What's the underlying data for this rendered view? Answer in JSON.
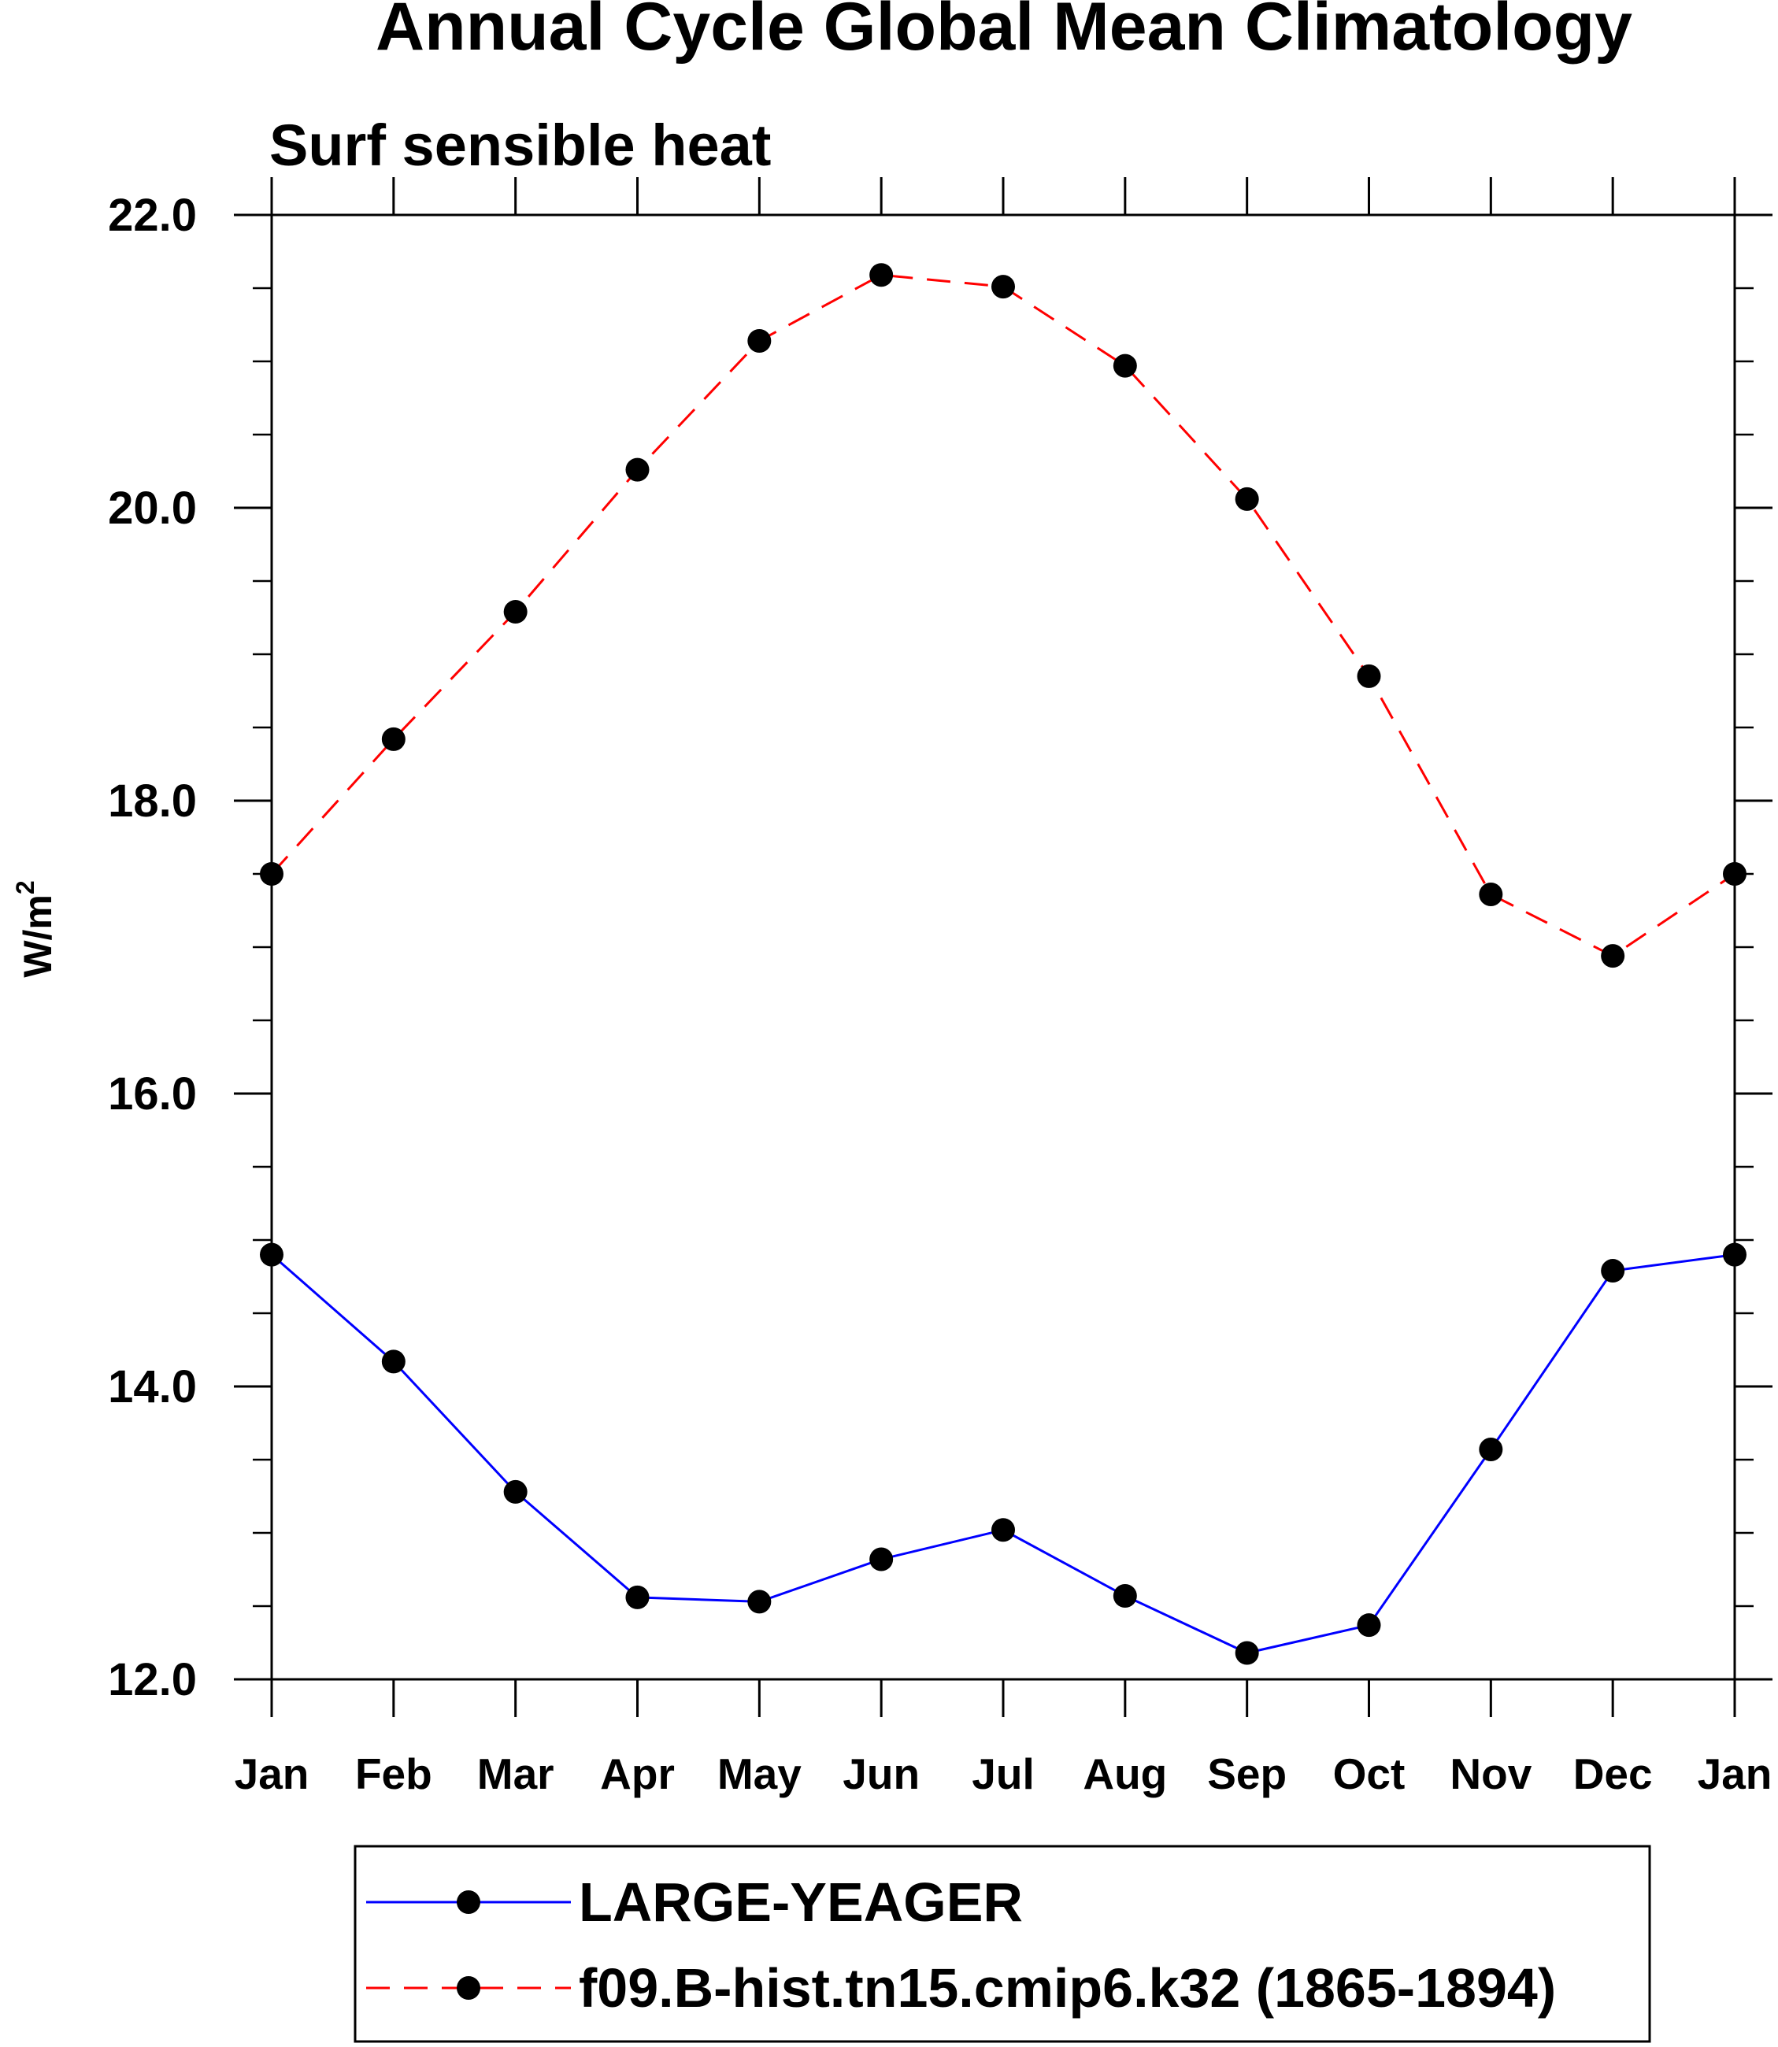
{
  "chart_data": {
    "type": "line",
    "title": "Annual Cycle Global Mean Climatology",
    "subtitle": "Surf sensible heat",
    "ylabel": "W/m",
    "ylabel_superscript": "2",
    "xlabel": "",
    "categories": [
      "Jan",
      "Feb",
      "Mar",
      "Apr",
      "May",
      "Jun",
      "Jul",
      "Aug",
      "Sep",
      "Oct",
      "Nov",
      "Dec",
      "Jan"
    ],
    "ylim": [
      12.0,
      22.0
    ],
    "yticks": [
      12.0,
      14.0,
      16.0,
      18.0,
      20.0,
      22.0
    ],
    "ytick_labels": [
      "12.0",
      "14.0",
      "16.0",
      "18.0",
      "20.0",
      "22.0"
    ],
    "y_minor_step": 0.5,
    "grid": false,
    "legend_position": "bottom",
    "series": [
      {
        "name": "LARGE-YEAGER",
        "color": "#0000ff",
        "dash": "solid",
        "marker": "filled-circle",
        "values": [
          14.9,
          14.17,
          13.28,
          12.56,
          12.53,
          12.82,
          13.02,
          12.57,
          12.18,
          12.37,
          13.57,
          14.79,
          14.9
        ]
      },
      {
        "name": "f09.B-hist.tn15.cmip6.k32 (1865-1894)",
        "color": "#ff0000",
        "dash": "dashed",
        "marker": "filled-circle",
        "values": [
          17.5,
          18.42,
          19.29,
          20.26,
          21.14,
          21.59,
          21.51,
          20.97,
          20.06,
          18.85,
          17.36,
          16.94,
          17.5
        ]
      }
    ]
  }
}
